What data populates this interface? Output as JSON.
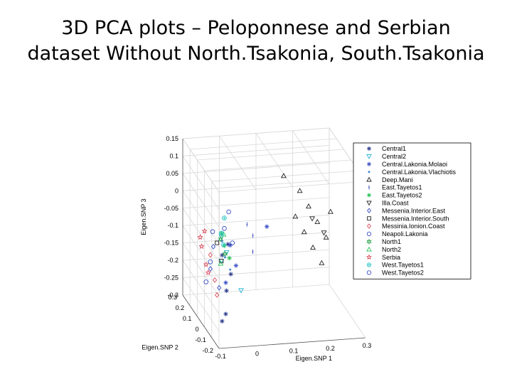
{
  "title": {
    "line1": "3D PCA plots – Peloponnese and Serbian",
    "line2": "dataset Without North.Tsakonia, South.Tsakonia"
  },
  "chart_data": {
    "type": "scatter",
    "projection": "3d",
    "title": "3D PCA plots – Peloponnese and Serbian dataset Without North.Tsakonia, South.Tsakonia",
    "xlabel": "Eigen.SNP 1",
    "ylabel": "Eigen.SNP 2",
    "zlabel": "Eigen.SNP 3",
    "xlim": [
      -0.1,
      0.3
    ],
    "ylim": [
      -0.2,
      0.3
    ],
    "zlim": [
      -0.3,
      0.15
    ],
    "x_ticks": [
      "-0.1",
      "0",
      "0.1",
      "0.2",
      "0.3"
    ],
    "y_ticks": [
      "-0.2",
      "-0.1",
      "0",
      "0.1",
      "0.2",
      "0.3"
    ],
    "z_ticks": [
      "-0.3",
      "-0.25",
      "-0.2",
      "-0.15",
      "-0.1",
      "-0.05",
      "0",
      "0.05",
      "0.1",
      "0.15"
    ],
    "grid": true,
    "legend_position": "right",
    "series": [
      {
        "name": "Central1",
        "marker": "asterisk",
        "color": "#2a3a8c",
        "points": [
          [
            -0.04,
            -0.02,
            -0.06
          ],
          [
            -0.05,
            0.01,
            -0.1
          ],
          [
            -0.03,
            -0.01,
            -0.15
          ],
          [
            -0.04,
            0.0,
            -0.2
          ],
          [
            -0.04,
            0.01,
            -0.27
          ],
          [
            -0.05,
            0.01,
            -0.29
          ]
        ]
      },
      {
        "name": "Central2",
        "marker": "triangle-down",
        "color": "#29b6d6",
        "points": [
          [
            -0.05,
            0.02,
            -0.05
          ],
          [
            -0.04,
            0.0,
            -0.09
          ],
          [
            -0.02,
            -0.1,
            -0.17
          ],
          [
            -0.05,
            0.02,
            -0.12
          ]
        ]
      },
      {
        "name": "Central.Lakonia.Molaoi",
        "marker": "asterisk",
        "color": "#3b4fc4",
        "points": [
          [
            -0.03,
            0.0,
            -0.07
          ],
          [
            -0.02,
            -0.03,
            -0.12
          ],
          [
            -0.04,
            0.01,
            -0.18
          ],
          [
            0.08,
            0.05,
            -0.04
          ]
        ]
      },
      {
        "name": "Central.Lakonia.Vlachiotis",
        "marker": "dot",
        "color": "#3b86d6",
        "points": [
          [
            -0.05,
            0.01,
            -0.06
          ],
          [
            -0.04,
            0.02,
            -0.11
          ],
          [
            -0.03,
            0.0,
            -0.14
          ]
        ]
      },
      {
        "name": "Deep.Mani",
        "marker": "triangle-up",
        "color": "#222222",
        "points": [
          [
            0.14,
            0.12,
            0.08
          ],
          [
            0.18,
            0.1,
            0.04
          ],
          [
            0.2,
            0.08,
            0.0
          ],
          [
            0.22,
            0.06,
            -0.04
          ],
          [
            0.24,
            0.04,
            -0.08
          ],
          [
            0.16,
            0.06,
            -0.02
          ],
          [
            0.2,
            0.02,
            -0.1
          ],
          [
            0.26,
            0.08,
            -0.02
          ],
          [
            0.22,
            0.0,
            -0.14
          ],
          [
            0.18,
            0.04,
            -0.06
          ]
        ]
      },
      {
        "name": "East.Tayetos1",
        "marker": "plus",
        "color": "#3a4bbd",
        "points": [
          [
            0.02,
            0.02,
            -0.02
          ],
          [
            0.04,
            0.04,
            -0.06
          ],
          [
            0.03,
            -0.01,
            -0.09
          ]
        ]
      },
      {
        "name": "East.Tayetos2",
        "marker": "asterisk",
        "color": "#27c45a",
        "points": [
          [
            -0.05,
            0.02,
            -0.04
          ],
          [
            -0.04,
            0.03,
            -0.08
          ],
          [
            -0.03,
            0.01,
            -0.11
          ]
        ]
      },
      {
        "name": "Illa.Coast",
        "marker": "triangle-down",
        "color": "#222222",
        "points": [
          [
            0.2,
            0.03,
            -0.02
          ],
          [
            0.23,
            0.02,
            -0.06
          ]
        ]
      },
      {
        "name": "Messenia.Interior.East",
        "marker": "diamond",
        "color": "#3b4fc4",
        "points": [
          [
            -0.07,
            0.03,
            -0.08
          ],
          [
            -0.08,
            0.02,
            -0.14
          ],
          [
            -0.06,
            0.0,
            -0.19
          ]
        ]
      },
      {
        "name": "Messenia.Interior.South",
        "marker": "square",
        "color": "#222222",
        "points": [
          [
            -0.06,
            0.03,
            -0.07
          ],
          [
            -0.05,
            0.02,
            -0.12
          ]
        ]
      },
      {
        "name": "Messinia.Ionion.Coast",
        "marker": "diamond",
        "color": "#d94a5a",
        "points": [
          [
            -0.08,
            0.02,
            -0.1
          ],
          [
            -0.07,
            0.01,
            -0.17
          ],
          [
            -0.06,
            0.03,
            -0.22
          ]
        ]
      },
      {
        "name": "Neapoli.Lakonia",
        "marker": "circle",
        "color": "#3b4fc4",
        "points": [
          [
            -0.07,
            0.04,
            -0.04
          ],
          [
            -0.08,
            0.02,
            -0.12
          ],
          [
            -0.09,
            0.03,
            -0.18
          ]
        ]
      },
      {
        "name": "North1",
        "marker": "hexagram",
        "color": "#27a04a",
        "points": [
          [
            -0.05,
            0.03,
            -0.06
          ],
          [
            -0.04,
            0.02,
            -0.1
          ]
        ]
      },
      {
        "name": "North2",
        "marker": "triangle-up",
        "color": "#27c45a",
        "points": [
          [
            -0.04,
            0.04,
            -0.05
          ],
          [
            -0.05,
            0.03,
            -0.13
          ]
        ]
      },
      {
        "name": "Serbia",
        "marker": "pentagram",
        "color": "#d94a5a",
        "points": [
          [
            -0.09,
            0.05,
            -0.04
          ],
          [
            -0.1,
            0.04,
            -0.08
          ],
          [
            -0.09,
            0.03,
            -0.13
          ],
          [
            -0.08,
            0.05,
            -0.16
          ],
          [
            -0.1,
            0.06,
            -0.06
          ]
        ]
      },
      {
        "name": "West.Tayetos1",
        "marker": "circle-cross",
        "color": "#29c4c4",
        "points": [
          [
            -0.04,
            0.03,
            0.0
          ],
          [
            -0.05,
            0.02,
            -0.04
          ],
          [
            -0.04,
            0.04,
            -0.08
          ]
        ]
      },
      {
        "name": "West.Tayetos2",
        "marker": "circle",
        "color": "#3b4fc4",
        "points": [
          [
            -0.03,
            0.02,
            0.02
          ],
          [
            -0.04,
            0.03,
            -0.03
          ],
          [
            -0.02,
            0.02,
            -0.07
          ]
        ]
      }
    ]
  }
}
